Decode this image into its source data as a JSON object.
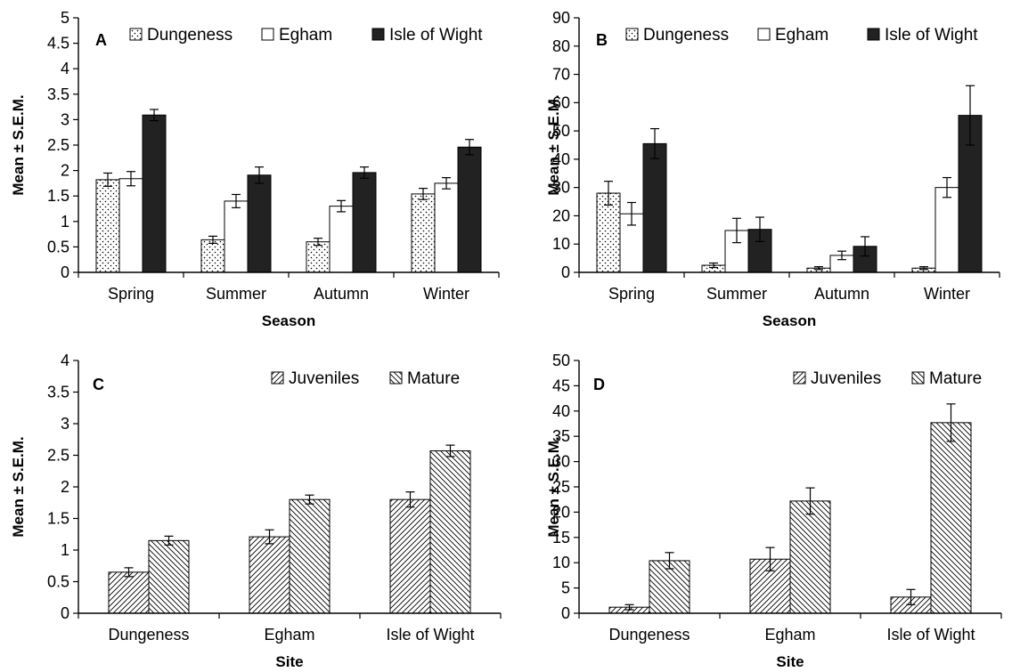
{
  "chart_data": [
    {
      "panel": "A",
      "type": "bar",
      "categories": [
        "Spring",
        "Summer",
        "Autumn",
        "Winter"
      ],
      "series": [
        {
          "name": "Dungeness",
          "values": [
            1.82,
            0.64,
            0.6,
            1.54
          ],
          "errors": [
            0.13,
            0.07,
            0.07,
            0.11
          ]
        },
        {
          "name": "Egham",
          "values": [
            1.84,
            1.4,
            1.3,
            1.75
          ],
          "errors": [
            0.14,
            0.13,
            0.11,
            0.11
          ]
        },
        {
          "name": "Isle of Wight",
          "values": [
            3.09,
            1.91,
            1.96,
            2.46
          ],
          "errors": [
            0.11,
            0.16,
            0.11,
            0.15
          ]
        }
      ],
      "xlabel": "Season",
      "ylabel": "Mean ± S.E.M.",
      "ylim": [
        0,
        5
      ],
      "yticks": [
        "0",
        "0.5",
        "1",
        "1.5",
        "2",
        "2.5",
        "3",
        "3.5",
        "4",
        "4.5",
        "5"
      ],
      "legend_position": "top"
    },
    {
      "panel": "B",
      "type": "bar",
      "categories": [
        "Spring",
        "Summer",
        "Autumn",
        "Winter"
      ],
      "series": [
        {
          "name": "Dungeness",
          "values": [
            28,
            2.5,
            1.5,
            1.5
          ],
          "errors": [
            4.2,
            0.8,
            0.5,
            0.5
          ]
        },
        {
          "name": "Egham",
          "values": [
            20.7,
            14.8,
            6,
            30
          ],
          "errors": [
            4,
            4.3,
            1.5,
            3.5
          ]
        },
        {
          "name": "Isle of Wight",
          "values": [
            45.5,
            15.2,
            9.2,
            55.5
          ],
          "errors": [
            5.3,
            4.3,
            3.4,
            10.5
          ]
        }
      ],
      "xlabel": "Season",
      "ylabel": "Mean ± S.E.M.",
      "ylim": [
        0,
        90
      ],
      "yticks": [
        "0",
        "10",
        "20",
        "30",
        "40",
        "50",
        "60",
        "70",
        "80",
        "90"
      ],
      "legend_position": "top"
    },
    {
      "panel": "C",
      "type": "bar",
      "categories": [
        "Dungeness",
        "Egham",
        "Isle of Wight"
      ],
      "series": [
        {
          "name": "Juveniles",
          "values": [
            0.65,
            1.21,
            1.8
          ],
          "errors": [
            0.07,
            0.11,
            0.12
          ]
        },
        {
          "name": "Mature",
          "values": [
            1.15,
            1.8,
            2.57
          ],
          "errors": [
            0.07,
            0.07,
            0.09
          ]
        }
      ],
      "xlabel": "Site",
      "ylabel": "Mean ± S.E.M.",
      "ylim": [
        0,
        4
      ],
      "yticks": [
        "0",
        "0.5",
        "1",
        "1.5",
        "2",
        "2.5",
        "3",
        "3.5",
        "4"
      ],
      "legend_position": "top-right"
    },
    {
      "panel": "D",
      "type": "bar",
      "categories": [
        "Dungeness",
        "Egham",
        "Isle of Wight"
      ],
      "series": [
        {
          "name": "Juveniles",
          "values": [
            1.2,
            10.7,
            3.2
          ],
          "errors": [
            0.5,
            2.3,
            1.5
          ]
        },
        {
          "name": "Mature",
          "values": [
            10.4,
            22.2,
            37.7
          ],
          "errors": [
            1.6,
            2.6,
            3.7
          ]
        }
      ],
      "xlabel": "Site",
      "ylabel": "Mean ± S.E.M.",
      "ylim": [
        0,
        50
      ],
      "yticks": [
        "0",
        "5",
        "10",
        "15",
        "20",
        "25",
        "30",
        "35",
        "40",
        "45",
        "50"
      ],
      "legend_position": "top-right"
    }
  ],
  "colors": {
    "axis": "#000000",
    "bar_edge": "#000000",
    "dungeness_fill": "#ffffff",
    "dungeness_dots": "#000000",
    "egham_fill": "#ffffff",
    "isle_of_wight_fill": "#222222",
    "hatch": "#000000"
  }
}
